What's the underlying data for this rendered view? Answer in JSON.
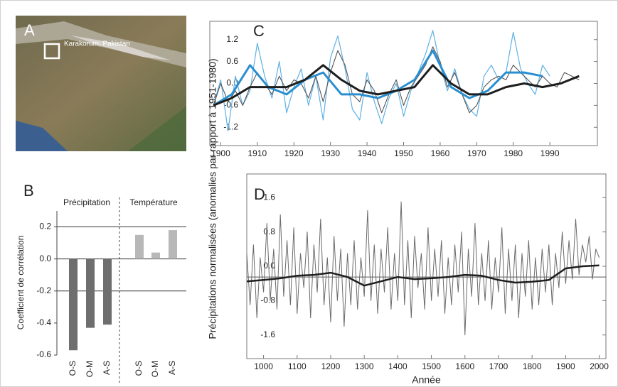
{
  "chart_data": [
    {
      "type": "map",
      "label": "A",
      "annotation": "Karakorum, Pakistan"
    },
    {
      "type": "bar",
      "label": "B",
      "ylabel": "Coefficient de corrélation",
      "ylim": [
        -0.6,
        0.3
      ],
      "yticks": [
        0.2,
        {
          "value": 0,
          "label": "0.0"
        },
        -0.2,
        -0.4,
        -0.6
      ],
      "hlines": [
        0.2,
        0,
        -0.2
      ],
      "series": [
        {
          "name": "Précipitation",
          "color": "#6e6e6e",
          "categories": [
            "O-S",
            "O-M",
            "A-S"
          ],
          "values": [
            -0.57,
            -0.43,
            -0.41
          ]
        },
        {
          "name": "Température",
          "color": "#b8b8b8",
          "categories": [
            "O-S",
            "O-M",
            "A-S"
          ],
          "values": [
            0.15,
            0.04,
            0.18
          ]
        }
      ]
    },
    {
      "type": "line",
      "label": "C",
      "ylabel": "Précipitations normalisées (anomalies par rapport à 1951-1980)",
      "xlim": [
        1897,
        2003
      ],
      "ylim": [
        -1.7,
        1.7
      ],
      "xticks": [
        1900,
        1910,
        1920,
        1930,
        1940,
        1950,
        1960,
        1970,
        1980,
        1990
      ],
      "yticks": [
        1.2,
        0.6,
        {
          "value": 0,
          "label": "0.0"
        },
        -0.6,
        -1.2
      ],
      "series": [
        {
          "color": "#5fb0e4",
          "line_width": 1.2,
          "x": [
            1898,
            1900,
            1902,
            1904,
            1906,
            1908,
            1910,
            1912,
            1914,
            1916,
            1918,
            1920,
            1922,
            1924,
            1926,
            1928,
            1930,
            1932,
            1934,
            1936,
            1938,
            1940,
            1942,
            1944,
            1946,
            1948,
            1950,
            1952,
            1954,
            1956,
            1958,
            1960,
            1962,
            1964,
            1966,
            1968,
            1970,
            1972,
            1974,
            1976,
            1978,
            1980,
            1982,
            1984,
            1986,
            1988,
            1990
          ],
          "values": [
            -0.6,
            0.1,
            -1.3,
            0.2,
            -0.6,
            -0.2,
            1.1,
            0.2,
            -0.4,
            0.6,
            -0.8,
            -0.1,
            0.4,
            -0.6,
            0.2,
            -1.0,
            0.7,
            1.3,
            0.4,
            -0.7,
            -1.0,
            0.3,
            -0.5,
            -1.1,
            -0.4,
            0.0,
            -0.9,
            -0.2,
            0.3,
            0.8,
            1.45,
            0.5,
            -0.2,
            0.4,
            -0.3,
            -0.7,
            -0.9,
            0.2,
            0.5,
            0.1,
            0.3,
            1.4,
            0.4,
            0.0,
            -0.3,
            0.5,
            0.2
          ]
        },
        {
          "color": "#555555",
          "line_width": 1.1,
          "x": [
            1898,
            1900,
            1902,
            1904,
            1906,
            1908,
            1910,
            1912,
            1914,
            1916,
            1918,
            1920,
            1922,
            1924,
            1926,
            1928,
            1930,
            1932,
            1934,
            1936,
            1938,
            1940,
            1942,
            1944,
            1946,
            1948,
            1950,
            1952,
            1954,
            1956,
            1958,
            1960,
            1962,
            1964,
            1966,
            1968,
            1970,
            1972,
            1974,
            1976,
            1978,
            1980,
            1982,
            1984,
            1986,
            1988,
            1990,
            1992,
            1994,
            1996,
            1998
          ],
          "values": [
            -0.6,
            0.0,
            -0.5,
            -0.2,
            -0.6,
            -0.1,
            0.3,
            0.0,
            -0.3,
            0.2,
            -0.2,
            0.1,
            0.0,
            -0.4,
            0.2,
            -0.5,
            0.3,
            0.9,
            0.5,
            -0.3,
            -0.5,
            0.1,
            -0.2,
            -0.8,
            -0.3,
            0.1,
            -0.6,
            -0.1,
            0.2,
            0.5,
            1.0,
            0.6,
            -0.1,
            0.3,
            -0.3,
            -0.8,
            -0.6,
            -0.1,
            0.1,
            0.2,
            0.1,
            0.5,
            0.3,
            0.1,
            -0.1,
            0.2,
            0.0,
            -0.1,
            0.3,
            0.2,
            0.1
          ]
        },
        {
          "color": "#2a8fd0",
          "line_width": 3,
          "x": [
            1898,
            1903,
            1908,
            1913,
            1918,
            1923,
            1928,
            1933,
            1938,
            1943,
            1948,
            1953,
            1958,
            1963,
            1968,
            1973,
            1978,
            1983,
            1988
          ],
          "values": [
            -0.6,
            -0.3,
            0.5,
            -0.1,
            -0.3,
            0.1,
            0.3,
            -0.3,
            -0.3,
            -0.4,
            -0.2,
            0.1,
            0.9,
            -0.1,
            -0.4,
            -0.2,
            0.3,
            0.3,
            0.2
          ]
        },
        {
          "color": "#1e1e1e",
          "line_width": 3,
          "x": [
            1898,
            1903,
            1908,
            1913,
            1918,
            1923,
            1928,
            1933,
            1938,
            1943,
            1948,
            1953,
            1958,
            1963,
            1968,
            1973,
            1978,
            1983,
            1988,
            1993,
            1998
          ],
          "values": [
            -0.6,
            -0.4,
            -0.1,
            -0.1,
            -0.1,
            0.1,
            0.5,
            0.1,
            -0.2,
            -0.3,
            -0.2,
            -0.1,
            0.5,
            0.0,
            -0.3,
            -0.3,
            -0.1,
            0.0,
            -0.1,
            0.0,
            0.2
          ]
        }
      ]
    },
    {
      "type": "line",
      "label": "D",
      "xlabel": "Année",
      "xlim": [
        950,
        2020
      ],
      "ylim": [
        -2.15,
        2.15
      ],
      "xticks": [
        1000,
        1100,
        1200,
        1300,
        1400,
        1500,
        1600,
        1700,
        1800,
        1900,
        2000
      ],
      "yticks": [
        1.6,
        0.8,
        {
          "value": 0,
          "label": "0.0"
        },
        -0.8,
        -1.6
      ],
      "hline": -0.25,
      "series": [
        {
          "color": "#6a6a6a",
          "line_width": 1,
          "x": [
            950,
            960,
            970,
            980,
            990,
            1000,
            1010,
            1020,
            1030,
            1040,
            1050,
            1060,
            1070,
            1080,
            1090,
            1100,
            1110,
            1120,
            1130,
            1140,
            1150,
            1160,
            1170,
            1180,
            1190,
            1200,
            1210,
            1220,
            1230,
            1240,
            1250,
            1260,
            1270,
            1280,
            1290,
            1300,
            1310,
            1320,
            1330,
            1340,
            1350,
            1360,
            1370,
            1380,
            1390,
            1400,
            1410,
            1420,
            1430,
            1440,
            1450,
            1460,
            1470,
            1480,
            1490,
            1500,
            1510,
            1520,
            1530,
            1540,
            1550,
            1560,
            1570,
            1580,
            1590,
            1600,
            1610,
            1620,
            1630,
            1640,
            1650,
            1660,
            1670,
            1680,
            1690,
            1700,
            1710,
            1720,
            1730,
            1740,
            1750,
            1760,
            1770,
            1780,
            1790,
            1800,
            1810,
            1820,
            1830,
            1840,
            1850,
            1860,
            1870,
            1880,
            1890,
            1900,
            1910,
            1920,
            1930,
            1940,
            1950,
            1960,
            1970,
            1980,
            1990,
            2000
          ],
          "values": [
            0.3,
            -0.9,
            0.5,
            -1.2,
            0.2,
            -0.6,
            1.0,
            -0.8,
            0.4,
            -1.0,
            1.2,
            -0.7,
            0.6,
            -0.9,
            0.9,
            -1.1,
            0.3,
            -0.5,
            0.8,
            -1.2,
            0.5,
            -0.6,
            1.1,
            -0.9,
            0.2,
            -1.3,
            0.7,
            -0.8,
            0.4,
            -1.4,
            0.3,
            -0.9,
            0.6,
            -1.0,
            0.2,
            -0.7,
            1.3,
            -0.8,
            0.5,
            -1.1,
            0.4,
            -0.6,
            0.9,
            -1.0,
            0.3,
            -0.8,
            1.5,
            -0.9,
            0.6,
            -1.2,
            0.7,
            -0.5,
            0.3,
            -1.0,
            0.9,
            -0.8,
            0.4,
            -0.7,
            0.6,
            -1.1,
            0.2,
            -0.9,
            0.5,
            -0.6,
            0.8,
            -1.6,
            0.4,
            -0.7,
            1.0,
            -0.9,
            0.3,
            -0.8,
            0.6,
            -1.0,
            0.2,
            -0.6,
            0.9,
            -1.1,
            0.4,
            -0.8,
            0.5,
            -1.2,
            0.3,
            -0.7,
            0.6,
            -1.0,
            0.2,
            -0.9,
            0.4,
            -0.6,
            0.5,
            -0.9,
            0.3,
            -0.5,
            0.8,
            -0.4,
            0.6,
            -0.3,
            1.1,
            -0.2,
            0.5,
            0.1,
            0.7,
            -0.3,
            0.4,
            0.2
          ]
        },
        {
          "color": "#1e1e1e",
          "line_width": 2.5,
          "x": [
            950,
            1000,
            1050,
            1100,
            1150,
            1200,
            1250,
            1300,
            1350,
            1400,
            1450,
            1500,
            1550,
            1600,
            1650,
            1700,
            1750,
            1800,
            1850,
            1900,
            1950,
            2000
          ],
          "values": [
            -0.35,
            -0.32,
            -0.28,
            -0.22,
            -0.2,
            -0.15,
            -0.25,
            -0.45,
            -0.35,
            -0.25,
            -0.3,
            -0.28,
            -0.25,
            -0.2,
            -0.22,
            -0.32,
            -0.38,
            -0.36,
            -0.32,
            -0.05,
            0.0,
            0.02
          ]
        }
      ]
    }
  ]
}
